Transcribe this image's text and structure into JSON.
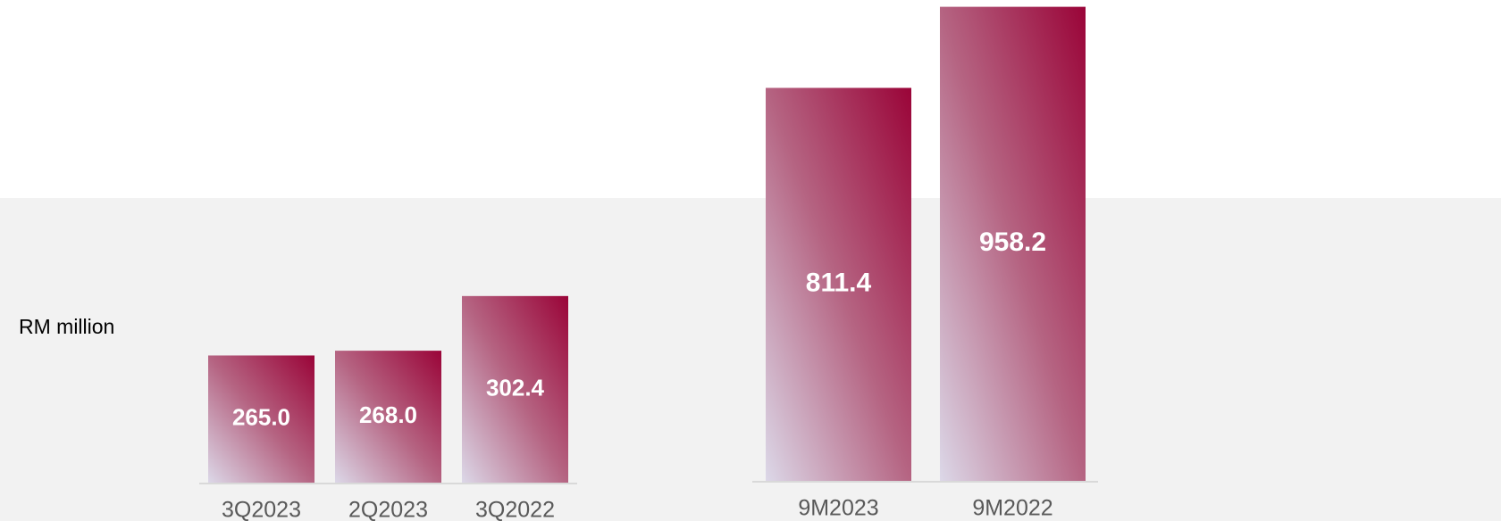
{
  "chart_data": [
    {
      "type": "bar",
      "ylabel": "RM million",
      "categories": [
        "3Q2023",
        "2Q2023",
        "3Q2022"
      ],
      "values": [
        265.0,
        268.0,
        302.4
      ],
      "value_labels": [
        "265.0",
        "268.0",
        "302.4"
      ],
      "ylim": [
        185,
        485
      ]
    },
    {
      "type": "bar",
      "categories": [
        "9M2023",
        "9M2022"
      ],
      "values": [
        811.4,
        958.2
      ],
      "ylim": [
        100,
        960
      ]
    }
  ]
}
